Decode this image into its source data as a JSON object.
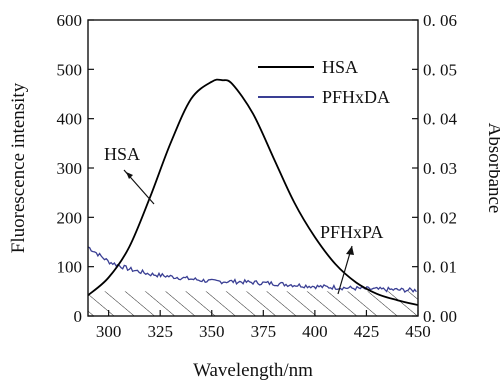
{
  "chart_data": {
    "type": "line",
    "xlabel": "Wavelength/nm",
    "ylabel_left": "Fluorescence intensity",
    "ylabel_right": "Absorbance",
    "xlim": [
      290,
      450
    ],
    "ylim_left": [
      0,
      600
    ],
    "ylim_right": [
      0,
      0.06
    ],
    "x_ticks": [
      300,
      325,
      350,
      375,
      400,
      425,
      450
    ],
    "x_tick_labels": [
      "300",
      "325",
      "350",
      "375",
      "400",
      "425",
      "450"
    ],
    "y_left_ticks": [
      0,
      100,
      200,
      300,
      400,
      500,
      600
    ],
    "y_left_tick_labels": [
      "0",
      "100",
      "200",
      "300",
      "400",
      "500",
      "600"
    ],
    "y_right_ticks": [
      0,
      0.01,
      0.02,
      0.03,
      0.04,
      0.05,
      0.06
    ],
    "y_right_tick_labels": [
      "0. 00",
      "0. 01",
      "0. 02",
      "0. 03",
      "0. 04",
      "0. 05",
      "0. 06"
    ],
    "legend_position": "top-right",
    "series": [
      {
        "name": "HSA",
        "axis": "left",
        "color": "#000000",
        "x": [
          290,
          300,
          310,
          320,
          330,
          340,
          350,
          355,
          360,
          370,
          380,
          390,
          400,
          410,
          420,
          430,
          440,
          450
        ],
        "values": [
          42,
          78,
          140,
          240,
          350,
          440,
          475,
          478,
          470,
          410,
          320,
          230,
          160,
          105,
          68,
          45,
          32,
          22
        ]
      },
      {
        "name": "PFHxDA",
        "axis": "right",
        "color": "#3a3f94",
        "x": [
          290,
          295,
          300,
          310,
          320,
          330,
          340,
          350,
          360,
          370,
          380,
          390,
          400,
          410,
          420,
          430,
          440,
          450
        ],
        "values": [
          0.014,
          0.0125,
          0.011,
          0.0095,
          0.0085,
          0.008,
          0.0075,
          0.007,
          0.007,
          0.0068,
          0.0066,
          0.0063,
          0.006,
          0.0058,
          0.0056,
          0.0054,
          0.0053,
          0.0052
        ]
      },
      {
        "name": "PFHxPA",
        "axis": "right",
        "color": "#000000",
        "style": "hatched-area",
        "x": [
          290,
          450
        ],
        "values": [
          0.005,
          0.005
        ]
      }
    ],
    "annotations": [
      {
        "text": "HSA",
        "points_to_series": "HSA",
        "x": 337,
        "y": 280
      },
      {
        "text": "PFHxPA",
        "points_to_series": "PFHxPA",
        "x": 420,
        "y": 70
      }
    ]
  }
}
